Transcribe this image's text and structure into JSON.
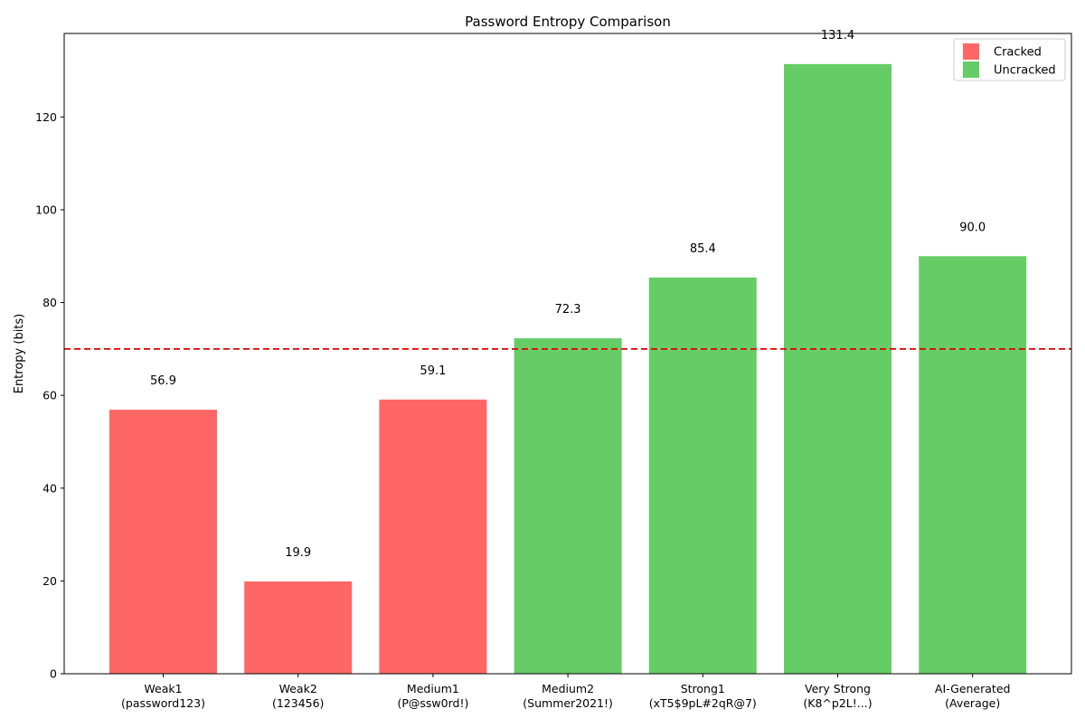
{
  "chart_data": {
    "type": "bar",
    "title": "Password Entropy Comparison",
    "xlabel": "",
    "ylabel": "Entropy (bits)",
    "categories": [
      [
        "Weak1",
        "(password123)"
      ],
      [
        "Weak2",
        "(123456)"
      ],
      [
        "Medium1",
        "(P@ssw0rd!)"
      ],
      [
        "Medium2",
        "(Summer2021!)"
      ],
      [
        "Strong1",
        "(xT5$9pL#2qR@7)"
      ],
      [
        "Very Strong",
        "(K8^p2L!...)"
      ],
      [
        "AI-Generated",
        "(Average)"
      ]
    ],
    "values": [
      56.9,
      19.9,
      59.1,
      72.3,
      85.4,
      131.4,
      90.0
    ],
    "value_labels": [
      "56.9",
      "19.9",
      "59.1",
      "72.3",
      "85.4",
      "131.4",
      "90.0"
    ],
    "status": [
      "Cracked",
      "Cracked",
      "Cracked",
      "Uncracked",
      "Uncracked",
      "Uncracked",
      "Uncracked"
    ],
    "ylim": [
      0,
      138
    ],
    "yticks": [
      0,
      20,
      40,
      60,
      80,
      100,
      120
    ],
    "ytick_labels": [
      "0",
      "20",
      "40",
      "60",
      "80",
      "100",
      "120"
    ],
    "threshold": {
      "value": 70,
      "color": "#dd0000",
      "style": "dashed"
    },
    "grid": false,
    "legend": {
      "placement": "top-right",
      "entries": [
        {
          "label": "Cracked",
          "color": "#ff6666"
        },
        {
          "label": "Uncracked",
          "color": "#66cc66"
        }
      ]
    },
    "colors": {
      "Cracked": "#ff6666",
      "Uncracked": "#66cc66"
    }
  }
}
